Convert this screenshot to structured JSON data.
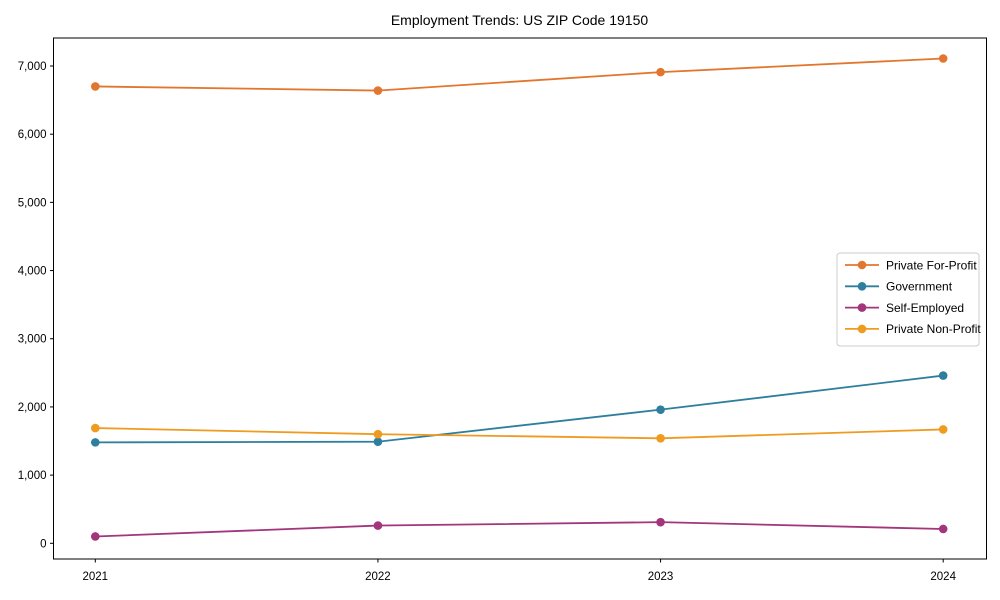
{
  "figure": {
    "title": "Employment Trends: US ZIP Code 19150"
  },
  "chart_data": {
    "type": "line",
    "title": "Employment Trends: US ZIP Code 19150",
    "categories": [
      "2021",
      "2022",
      "2023",
      "2024"
    ],
    "series": [
      {
        "name": "Private For-Profit",
        "color": "#e2762e",
        "values": [
          6700,
          6640,
          6910,
          7110
        ]
      },
      {
        "name": "Government",
        "color": "#2e7f9e",
        "values": [
          1480,
          1490,
          1960,
          2460
        ]
      },
      {
        "name": "Self-Employed",
        "color": "#a2357b",
        "values": [
          100,
          260,
          310,
          210
        ]
      },
      {
        "name": "Private Non-Profit",
        "color": "#ef9b20",
        "values": [
          1690,
          1600,
          1540,
          1670
        ]
      }
    ],
    "xlabel": "",
    "ylabel": "",
    "ylim": [
      0,
      7000
    ],
    "yticks": [
      0,
      1000,
      2000,
      3000,
      4000,
      5000,
      6000,
      7000
    ],
    "ytick_labels": [
      "0",
      "1,000",
      "2,000",
      "3,000",
      "4,000",
      "5,000",
      "6,000",
      "7,000"
    ],
    "grid": false,
    "marker": "circle",
    "legend": {
      "position": "center-right",
      "entries": [
        "Private For-Profit",
        "Government",
        "Self-Employed",
        "Private Non-Profit"
      ]
    },
    "background_color": "#ffffff",
    "axis_color": "#000000",
    "legend_border_color": "#cccccc"
  }
}
